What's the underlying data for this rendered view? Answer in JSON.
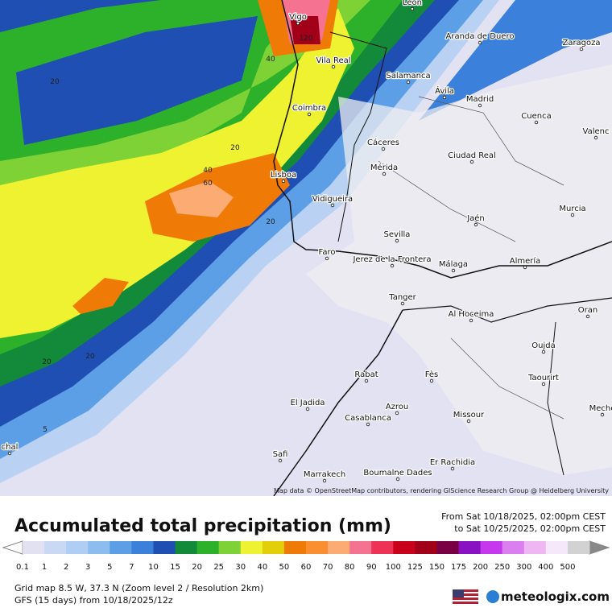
{
  "map": {
    "attribution": "Map data © OpenStreetMap contributors, rendering GIScience Research Group @ Heidelberg University",
    "cities": [
      "Vigo",
      "Leon",
      "Aranda de Duero",
      "Zaragoza",
      "Vila Real",
      "Salamanca",
      "Ávila",
      "Madrid",
      "Coimbra",
      "Cuenca",
      "Valenc",
      "Cáceres",
      "Ciudad Real",
      "Mérida",
      "Lisboa",
      "Vidigueira",
      "Jaén",
      "Murcia",
      "Sevilla",
      "Faro",
      "Jerez de la Frontera",
      "Málaga",
      "Almería",
      "Tanger",
      "Oran",
      "Al Hoceima",
      "Oujda",
      "Taourirt",
      "Rabat",
      "Fès",
      "El Jadida",
      "Azrou",
      "Casablanca",
      "Missour",
      "Meche",
      "Safi",
      "Marrakech",
      "Boumalne Dades",
      "Er Rachidia",
      "chal"
    ],
    "contours": [
      "120",
      "40",
      "20",
      "20",
      "40",
      "60",
      "20",
      "20",
      "20",
      "5"
    ]
  },
  "footer": {
    "title": "Accumulated total precipitation (mm)",
    "from": "From Sat 10/18/2025, 02:00pm CEST",
    "to": "to Sat 10/25/2025, 02:00pm CEST",
    "grid": "Grid map 8.5 W, 37.3 N (Zoom level 2 / Resolution 2km)",
    "model": "GFS (15 days) from 10/18/2025/12z",
    "brand": "meteologix.com"
  },
  "legend": {
    "values": [
      0.1,
      1,
      2,
      3,
      5,
      7,
      10,
      15,
      20,
      25,
      30,
      40,
      50,
      60,
      70,
      80,
      90,
      100,
      125,
      150,
      175,
      200,
      250,
      300,
      400,
      500
    ],
    "colors": [
      "#e1e1f2",
      "#c9d9f4",
      "#b0cdf3",
      "#8dbcef",
      "#5c9fe6",
      "#3b80da",
      "#1f4fb2",
      "#138a3a",
      "#2eb12a",
      "#7ed236",
      "#eef230",
      "#e2cf0a",
      "#f07a06",
      "#fb8e2e",
      "#fcac72",
      "#f57290",
      "#ee3255",
      "#c8001c",
      "#a20018",
      "#7a0046",
      "#8a10c4",
      "#c638ee",
      "#da7ef0",
      "#efb6f4",
      "#f5e8fa",
      "#d2d2d2"
    ]
  }
}
